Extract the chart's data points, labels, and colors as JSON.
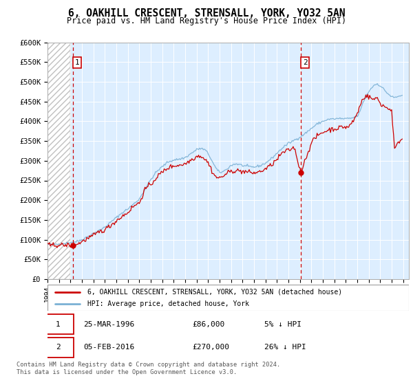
{
  "title": "6, OAKHILL CRESCENT, STRENSALL, YORK, YO32 5AN",
  "subtitle": "Price paid vs. HM Land Registry's House Price Index (HPI)",
  "ylim": [
    0,
    600000
  ],
  "yticks": [
    0,
    50000,
    100000,
    150000,
    200000,
    250000,
    300000,
    350000,
    400000,
    450000,
    500000,
    550000,
    600000
  ],
  "ytick_labels": [
    "£0",
    "£50K",
    "£100K",
    "£150K",
    "£200K",
    "£250K",
    "£300K",
    "£350K",
    "£400K",
    "£450K",
    "£500K",
    "£550K",
    "£600K"
  ],
  "xmin_year": 1994.0,
  "xmax_year": 2025.5,
  "xticks": [
    1994,
    1995,
    1996,
    1997,
    1998,
    1999,
    2000,
    2001,
    2002,
    2003,
    2004,
    2005,
    2006,
    2007,
    2008,
    2009,
    2010,
    2011,
    2012,
    2013,
    2014,
    2015,
    2016,
    2017,
    2018,
    2019,
    2020,
    2021,
    2022,
    2023,
    2024,
    2025
  ],
  "sale1_year": 1996.23,
  "sale1_price": 86000,
  "sale1_label": "1",
  "sale2_year": 2016.09,
  "sale2_price": 270000,
  "sale2_label": "2",
  "hpi_color": "#7ab0d4",
  "price_color": "#cc0000",
  "sale_dot_color": "#cc0000",
  "bg_plot_color": "#ddeeff",
  "grid_color": "#ffffff",
  "legend_label1": "6, OAKHILL CRESCENT, STRENSALL, YORK, YO32 5AN (detached house)",
  "legend_label2": "HPI: Average price, detached house, York",
  "annot1_date": "25-MAR-1996",
  "annot1_price": "£86,000",
  "annot1_hpi": "5% ↓ HPI",
  "annot2_date": "05-FEB-2016",
  "annot2_price": "£270,000",
  "annot2_hpi": "26% ↓ HPI",
  "footer": "Contains HM Land Registry data © Crown copyright and database right 2024.\nThis data is licensed under the Open Government Licence v3.0.",
  "hatch_end_year": 1996.0
}
